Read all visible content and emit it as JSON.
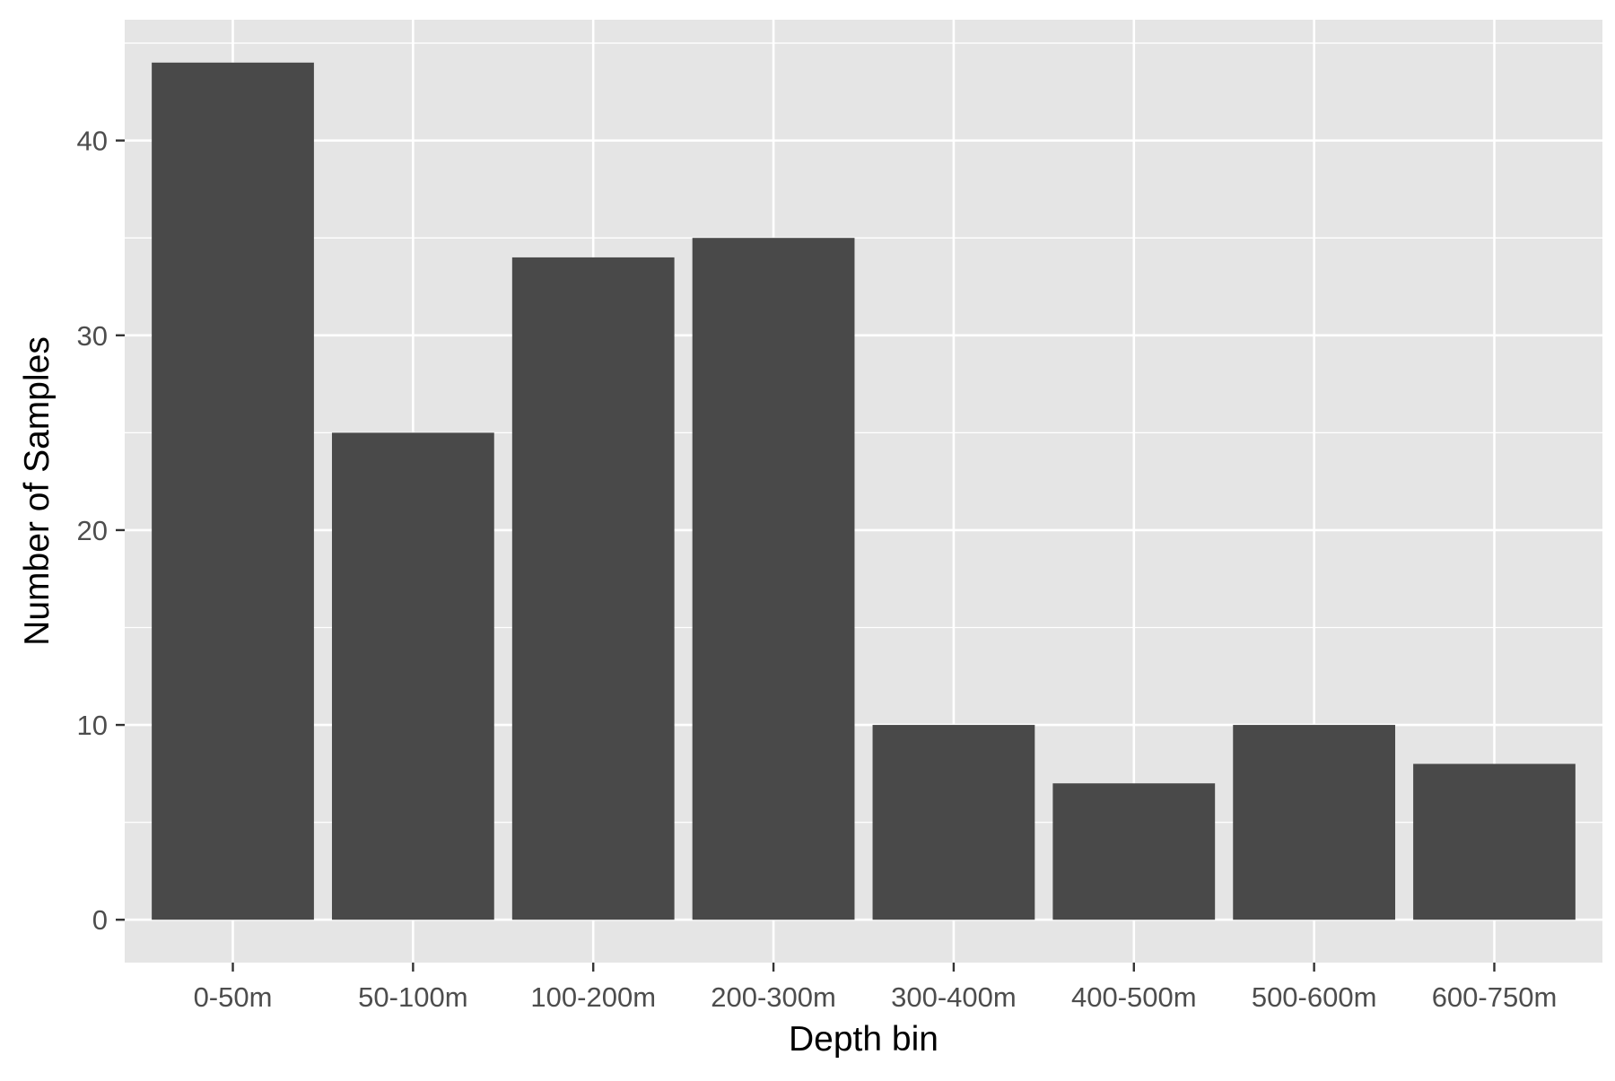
{
  "chart_data": {
    "type": "bar",
    "title": "",
    "xlabel": "Depth bin",
    "ylabel": "Number of Samples",
    "categories": [
      "0-50m",
      "50-100m",
      "100-200m",
      "200-300m",
      "300-400m",
      "400-500m",
      "500-600m",
      "600-750m"
    ],
    "values": [
      44,
      25,
      34,
      35,
      10,
      7,
      10,
      8
    ],
    "ylim": [
      -2.2,
      46.2
    ],
    "yticks": [
      0,
      10,
      20,
      30,
      40
    ],
    "ytick_labels": [
      "0",
      "10",
      "20",
      "30",
      "40"
    ],
    "grid": true,
    "legend": "none",
    "colors": {
      "panel_background": "#E5E5E5",
      "grid_line": "#FFFFFF",
      "bar_fill": "#494949",
      "tick_label": "#4D4D4D",
      "axis_title": "#000000",
      "tick_mark": "#333333"
    }
  }
}
